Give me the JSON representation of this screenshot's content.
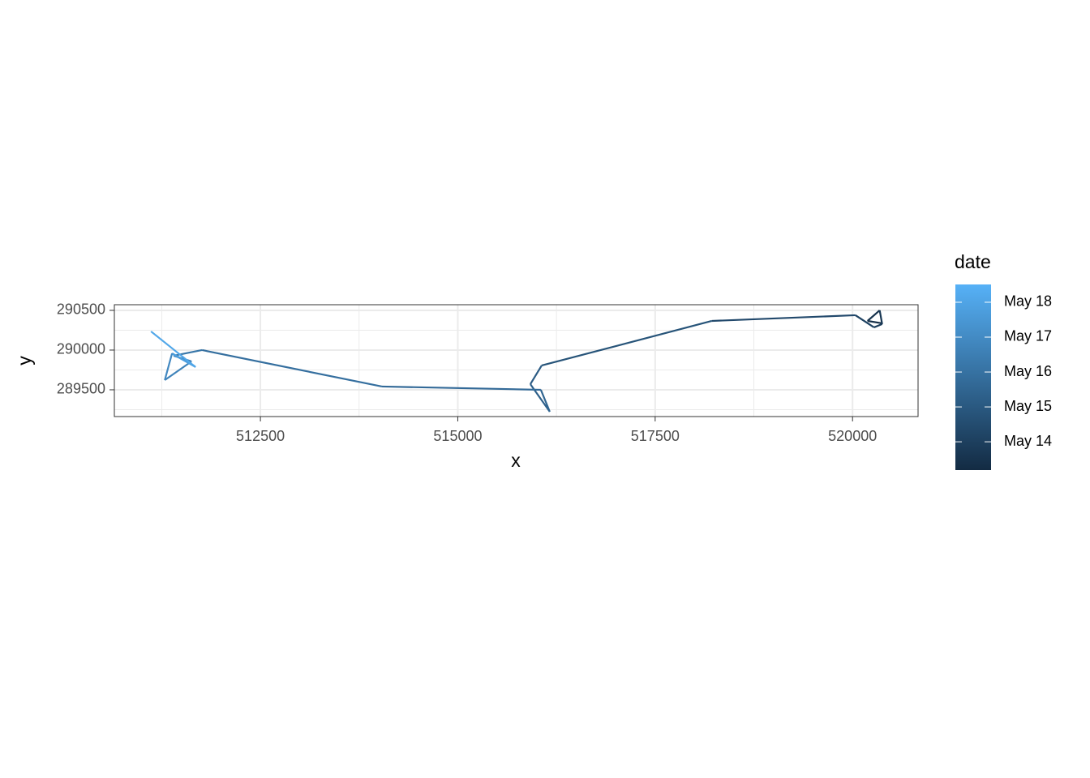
{
  "chart_data": {
    "type": "path",
    "x_label": "x",
    "y_label": "y",
    "legend_title": "date",
    "x": [
      520375,
      520190,
      520344,
      520375,
      520272,
      520036,
      518219,
      516063,
      515919,
      516165,
      516052,
      514040,
      511761,
      511401,
      511627,
      511289,
      511381,
      511668,
      511391,
      511679,
      511114
    ],
    "y": [
      290337,
      290367,
      290500,
      290327,
      290286,
      290439,
      290367,
      289806,
      289571,
      289224,
      289500,
      289541,
      290000,
      289929,
      289857,
      289622,
      289959,
      289796,
      289949,
      289786,
      290235
    ],
    "date": [
      13.3,
      13.5,
      13.7,
      13.9,
      14.1,
      14.4,
      14.8,
      15.1,
      15.3,
      15.5,
      15.7,
      15.9,
      16.2,
      16.5,
      16.7,
      16.9,
      17.2,
      17.5,
      17.8,
      18.1,
      18.4
    ],
    "xlim": [
      510650,
      520830
    ],
    "ylim": [
      289163,
      290571
    ],
    "xticks": [
      512500,
      515000,
      517500,
      520000
    ],
    "yticks": [
      289500,
      290000,
      290500
    ],
    "grid": true,
    "colorbar": {
      "lim": [
        13.19,
        18.51
      ],
      "colors": [
        "#132B43",
        "#56B1F7"
      ],
      "ticks": [
        {
          "value": 14,
          "label": "May 14"
        },
        {
          "value": 15,
          "label": "May 15"
        },
        {
          "value": 16,
          "label": "May 16"
        },
        {
          "value": 17,
          "label": "May 17"
        },
        {
          "value": 18,
          "label": "May 18"
        }
      ]
    }
  }
}
